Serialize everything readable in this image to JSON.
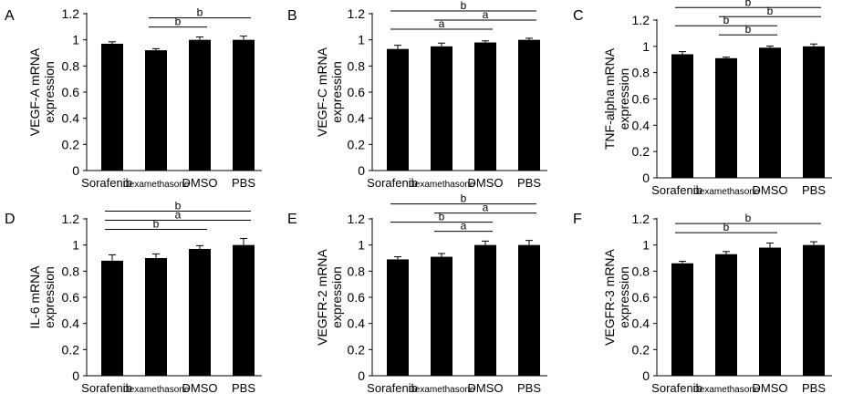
{
  "chart_data": [
    {
      "panel": "A",
      "type": "bar",
      "categories": [
        "Sorafenib",
        "Dexamethasone",
        "DMSO",
        "PBS"
      ],
      "values": [
        0.97,
        0.92,
        1.0,
        1.0
      ],
      "errors": [
        0.015,
        0.012,
        0.022,
        0.028
      ],
      "ylabel": "VEGF-A mRNA expression",
      "ylim": [
        0,
        1.2
      ],
      "yticks": [
        "0",
        "0.2",
        "0.4",
        "0.6",
        "0.8",
        "1",
        "1.2"
      ],
      "significance": [
        {
          "from": "Dexamethasone",
          "to": "DMSO",
          "label": "b"
        },
        {
          "from": "Dexamethasone",
          "to": "PBS",
          "label": "b"
        }
      ]
    },
    {
      "panel": "B",
      "type": "bar",
      "categories": [
        "Sorafenib",
        "Dexamethasone",
        "DMSO",
        "PBS"
      ],
      "values": [
        0.93,
        0.95,
        0.98,
        1.0
      ],
      "errors": [
        0.028,
        0.025,
        0.012,
        0.012
      ],
      "ylabel": "VEGF-C mRNA expression",
      "ylim": [
        0,
        1.2
      ],
      "yticks": [
        "0",
        "0.2",
        "0.4",
        "0.6",
        "0.8",
        "1",
        "1.2"
      ],
      "significance": [
        {
          "from": "Sorafenib",
          "to": "DMSO",
          "label": "a"
        },
        {
          "from": "Dexamethasone",
          "to": "PBS",
          "label": "a"
        },
        {
          "from": "Sorafenib",
          "to": "PBS",
          "label": "b"
        }
      ]
    },
    {
      "panel": "C",
      "type": "bar",
      "categories": [
        "Sorafenib",
        "Dexamethasone",
        "DMSO",
        "PBS"
      ],
      "values": [
        0.94,
        0.91,
        0.99,
        1.0
      ],
      "errors": [
        0.02,
        0.008,
        0.012,
        0.018
      ],
      "ylabel": "TNF-alpha mRNA expression",
      "ylim": [
        0,
        1.2
      ],
      "yticks": [
        "0",
        "0.2",
        "0.4",
        "0.6",
        "0.8",
        "1",
        "1.2"
      ],
      "significance": [
        {
          "from": "Sorafenib",
          "to": "DMSO",
          "label": "b"
        },
        {
          "from": "Sorafenib",
          "to": "PBS",
          "label": "b"
        },
        {
          "from": "Dexamethasone",
          "to": "DMSO",
          "label": "b"
        },
        {
          "from": "Dexamethasone",
          "to": "PBS",
          "label": "b"
        }
      ]
    },
    {
      "panel": "D",
      "type": "bar",
      "categories": [
        "Sorafenib",
        "Dexamethasone",
        "DMSO",
        "PBS"
      ],
      "values": [
        0.88,
        0.9,
        0.97,
        1.0
      ],
      "errors": [
        0.045,
        0.032,
        0.025,
        0.05
      ],
      "ylabel": "IL-6 mRNA expression",
      "ylim": [
        0,
        1.2
      ],
      "yticks": [
        "0",
        "0.2",
        "0.4",
        "0.6",
        "0.8",
        "1",
        "1.2"
      ],
      "significance": [
        {
          "from": "Sorafenib",
          "to": "DMSO",
          "label": "b"
        },
        {
          "from": "Sorafenib",
          "to": "PBS",
          "label": "a"
        },
        {
          "from": "Sorafenib",
          "to": "PBS",
          "label": "b"
        }
      ]
    },
    {
      "panel": "E",
      "type": "bar",
      "categories": [
        "Sorafenib",
        "Dexamethasone",
        "DMSO",
        "PBS"
      ],
      "values": [
        0.89,
        0.91,
        1.0,
        1.0
      ],
      "errors": [
        0.02,
        0.025,
        0.03,
        0.035
      ],
      "ylabel": "VEGFR-2 mRNA expression",
      "ylim": [
        0,
        1.2
      ],
      "yticks": [
        "0",
        "0.2",
        "0.4",
        "0.6",
        "0.8",
        "1",
        "1.2"
      ],
      "significance": [
        {
          "from": "Sorafenib",
          "to": "DMSO",
          "label": "b"
        },
        {
          "from": "Sorafenib",
          "to": "PBS",
          "label": "b"
        },
        {
          "from": "Dexamethasone",
          "to": "DMSO",
          "label": "a"
        },
        {
          "from": "Dexamethasone",
          "to": "PBS",
          "label": "a"
        }
      ]
    },
    {
      "panel": "F",
      "type": "bar",
      "categories": [
        "Sorafenib",
        "Dexamethasone",
        "DMSO",
        "PBS"
      ],
      "values": [
        0.86,
        0.93,
        0.98,
        1.0
      ],
      "errors": [
        0.015,
        0.02,
        0.035,
        0.025
      ],
      "ylabel": "VEGFR-3 mRNA expression",
      "ylim": [
        0,
        1.2
      ],
      "yticks": [
        "0",
        "0.2",
        "0.4",
        "0.6",
        "0.8",
        "1",
        "1.2"
      ],
      "significance": [
        {
          "from": "Sorafenib",
          "to": "DMSO",
          "label": "b"
        },
        {
          "from": "Sorafenib",
          "to": "PBS",
          "label": "b"
        }
      ]
    }
  ]
}
